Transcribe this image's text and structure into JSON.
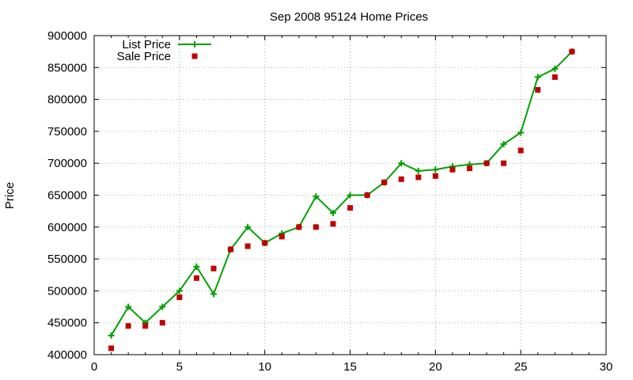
{
  "chart_data": {
    "type": "line",
    "title": "Sep 2008 95124 Home Prices",
    "xlabel": "",
    "ylabel": "Price",
    "xlim": [
      0,
      30
    ],
    "ylim": [
      400000,
      900000
    ],
    "x_ticks": [
      "0",
      "5",
      "10",
      "15",
      "20",
      "25",
      "30"
    ],
    "y_ticks": [
      "400000",
      "450000",
      "500000",
      "550000",
      "600000",
      "650000",
      "700000",
      "750000",
      "800000",
      "850000",
      "900000"
    ],
    "grid": true,
    "legend_position": "top-left",
    "colors": {
      "list": "#00a000",
      "sale": "#c00000"
    },
    "x": [
      1,
      2,
      3,
      4,
      5,
      6,
      7,
      8,
      9,
      10,
      11,
      12,
      13,
      14,
      15,
      16,
      17,
      18,
      19,
      20,
      21,
      22,
      23,
      24,
      25,
      26,
      27,
      28
    ],
    "series": [
      {
        "name": "List Price",
        "style": "line-points-plus",
        "values": [
          430000,
          475000,
          450000,
          475000,
          500000,
          538000,
          495000,
          565000,
          600000,
          575000,
          590000,
          600000,
          648000,
          622000,
          650000,
          650000,
          670000,
          700000,
          688000,
          690000,
          695000,
          698000,
          700000,
          730000,
          748000,
          835000,
          848000,
          875000
        ]
      },
      {
        "name": "Sale Price",
        "style": "points-square",
        "values": [
          410000,
          445000,
          445000,
          450000,
          490000,
          520000,
          535000,
          565000,
          570000,
          575000,
          585000,
          600000,
          600000,
          605000,
          630000,
          650000,
          670000,
          675000,
          678000,
          680000,
          690000,
          692000,
          700000,
          700000,
          720000,
          815000,
          835000,
          875000
        ]
      }
    ]
  }
}
